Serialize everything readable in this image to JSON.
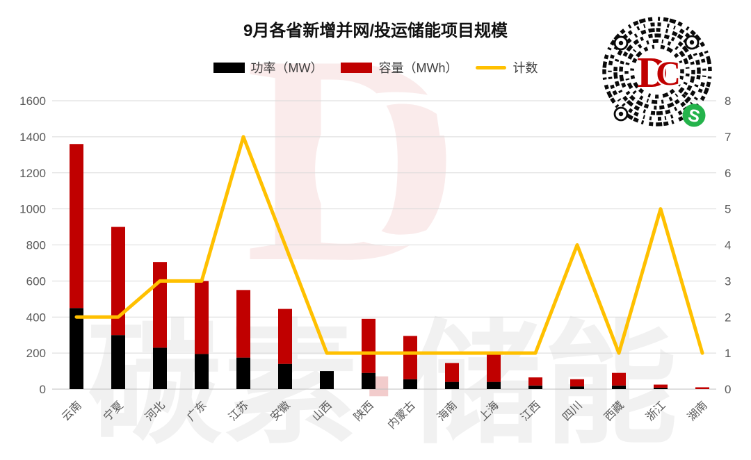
{
  "header": {
    "title": "9月各省新增并网/投运储能项目规模"
  },
  "watermarks": {
    "logo_d": "D",
    "logo_c": "C",
    "brand_left": "碳素",
    "brand_dot": "·",
    "brand_right": "储能"
  },
  "qr": {
    "type": "wechat-mini-program-round-qr",
    "center_logo_d": "D",
    "center_logo_c": "C",
    "logo_red": "#C00000",
    "wechat_green": "#24B34B"
  },
  "chart_data": {
    "type": "combo",
    "title": "9月各省新增并网/投运储能项目规模",
    "categories": [
      "云南",
      "宁夏",
      "河北",
      "广东",
      "江苏",
      "安徽",
      "山西",
      "陕西",
      "内蒙古",
      "海南",
      "上海",
      "江西",
      "四川",
      "西藏",
      "浙江",
      "湖南"
    ],
    "series": [
      {
        "name": "功率（MW）",
        "chart": "bar",
        "stack": "total",
        "axis": "left",
        "color": "#000000",
        "values": [
          450,
          300,
          230,
          195,
          175,
          140,
          100,
          90,
          55,
          40,
          40,
          20,
          15,
          20,
          8,
          0
        ]
      },
      {
        "name": "容量（MWh）",
        "chart": "bar",
        "stack": "total",
        "axis": "left",
        "color": "#C00000",
        "values": [
          910,
          600,
          475,
          405,
          375,
          305,
          0,
          300,
          240,
          105,
          155,
          45,
          40,
          70,
          17,
          10
        ]
      },
      {
        "name": "计数",
        "chart": "line",
        "axis": "right",
        "color": "#FFC000",
        "values": [
          2,
          2,
          3,
          3,
          7,
          4,
          1,
          1,
          1,
          1,
          1,
          1,
          4,
          1,
          5,
          1
        ]
      }
    ],
    "stacked_totals_mwh": [
      1360,
      900,
      705,
      600,
      550,
      445,
      100,
      390,
      295,
      145,
      195,
      65,
      55,
      90,
      25,
      10
    ],
    "left_axis": {
      "min": 0,
      "max": 1600,
      "step": 200,
      "tick_labels": [
        "0",
        "200",
        "400",
        "600",
        "800",
        "1000",
        "1200",
        "1400",
        "1600"
      ]
    },
    "right_axis": {
      "min": 0,
      "max": 8,
      "step": 1,
      "tick_labels": [
        "0",
        "1",
        "2",
        "3",
        "4",
        "5",
        "6",
        "7",
        "8"
      ]
    },
    "grid": true,
    "legend_position": "top",
    "colors": {
      "grid": "#D9D9D9",
      "axis_line": "#BFBFBF",
      "tick_labels": "#595959",
      "x_labels": "#595959"
    }
  }
}
